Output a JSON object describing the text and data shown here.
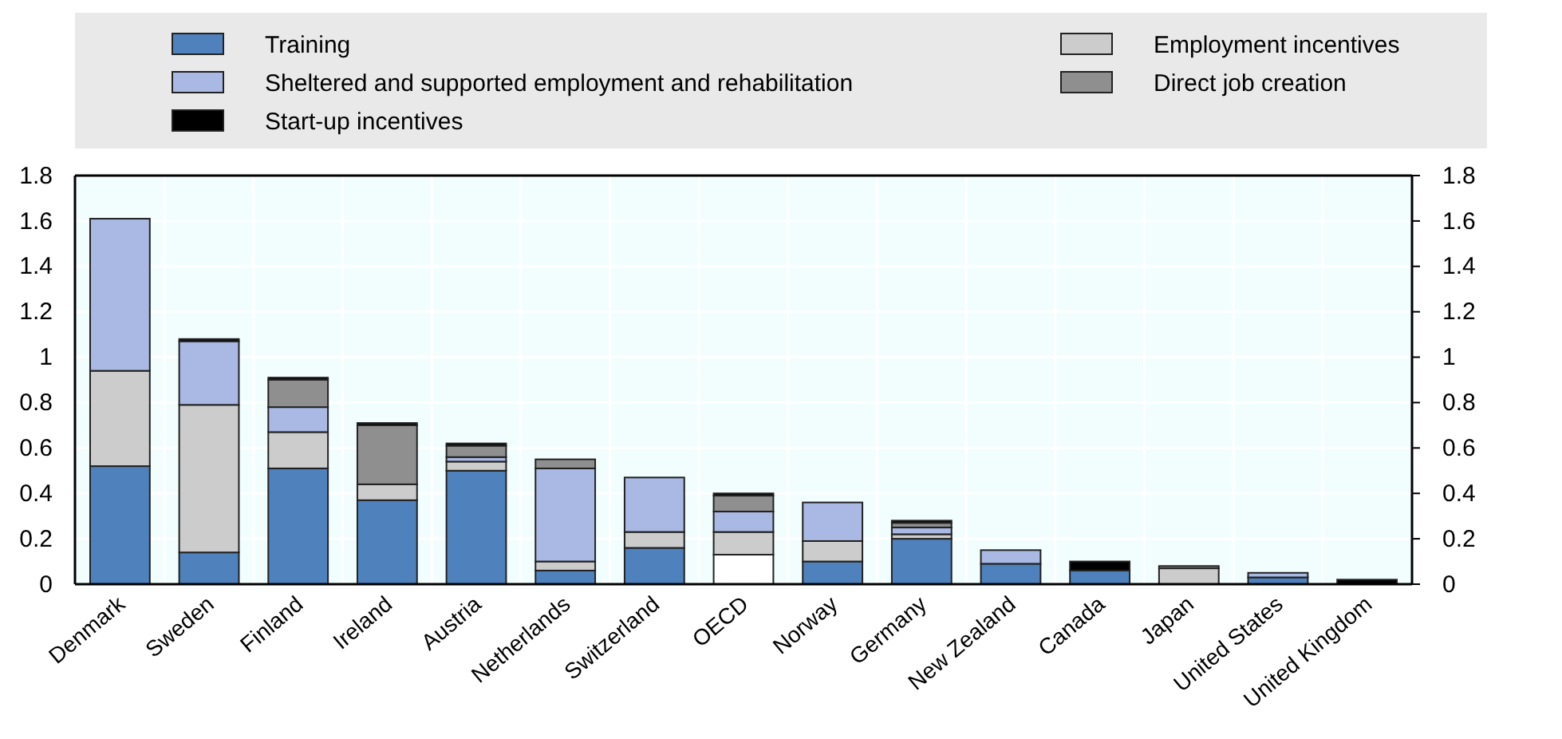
{
  "chart_data": {
    "type": "bar",
    "stacked": true,
    "categories": [
      "Denmark",
      "Sweden",
      "Finland",
      "Ireland",
      "Austria",
      "Netherlands",
      "Switzerland",
      "OECD",
      "Norway",
      "Germany",
      "New Zealand",
      "Canada",
      "Japan",
      "United States",
      "United Kingdom"
    ],
    "series": [
      {
        "name": "Training",
        "color": "#4f81bd",
        "colors": [
          "#4f81bd",
          "#4f81bd",
          "#4f81bd",
          "#4f81bd",
          "#4f81bd",
          "#4f81bd",
          "#4f81bd",
          "#ffffff",
          "#4f81bd",
          "#4f81bd",
          "#4f81bd",
          "#4f81bd",
          "#4f81bd",
          "#4f81bd",
          "#4f81bd"
        ],
        "values": [
          0.52,
          0.14,
          0.51,
          0.37,
          0.5,
          0.06,
          0.16,
          0.13,
          0.1,
          0.2,
          0.09,
          0.06,
          0,
          0.03,
          0
        ]
      },
      {
        "name": "Employment incentives",
        "color": "#cccccc",
        "values": [
          0.42,
          0.65,
          0.16,
          0.07,
          0.04,
          0.04,
          0.07,
          0.1,
          0.09,
          0.02,
          0,
          0,
          0.07,
          0,
          0
        ]
      },
      {
        "name": "Sheltered and supported employment and rehabilitation",
        "color": "#a9b9e3",
        "values": [
          0.67,
          0.28,
          0.11,
          0,
          0.02,
          0.41,
          0.24,
          0.09,
          0.17,
          0.03,
          0.06,
          0,
          0,
          0.02,
          0
        ]
      },
      {
        "name": "Direct job creation",
        "color": "#8f8f8f",
        "values": [
          0,
          0,
          0.12,
          0.26,
          0.05,
          0.04,
          0,
          0.07,
          0,
          0.02,
          0,
          0,
          0.01,
          0,
          0
        ]
      },
      {
        "name": "Start-up incentives",
        "color": "#000000",
        "values": [
          0,
          0.01,
          0.01,
          0.01,
          0.01,
          0,
          0,
          0.01,
          0,
          0.01,
          0,
          0.04,
          0,
          0,
          0.02
        ]
      }
    ],
    "ylim": [
      0,
      1.8
    ],
    "yticks": [
      0,
      0.2,
      0.4,
      0.6,
      0.8,
      1,
      1.2,
      1.4,
      1.6,
      1.8
    ],
    "y2lim": [
      0,
      1.8
    ],
    "y2ticks": [
      0,
      0.2,
      0.4,
      0.6,
      0.8,
      1,
      1.2,
      1.4,
      1.6,
      1.8
    ],
    "grid": true,
    "legend": "top"
  }
}
